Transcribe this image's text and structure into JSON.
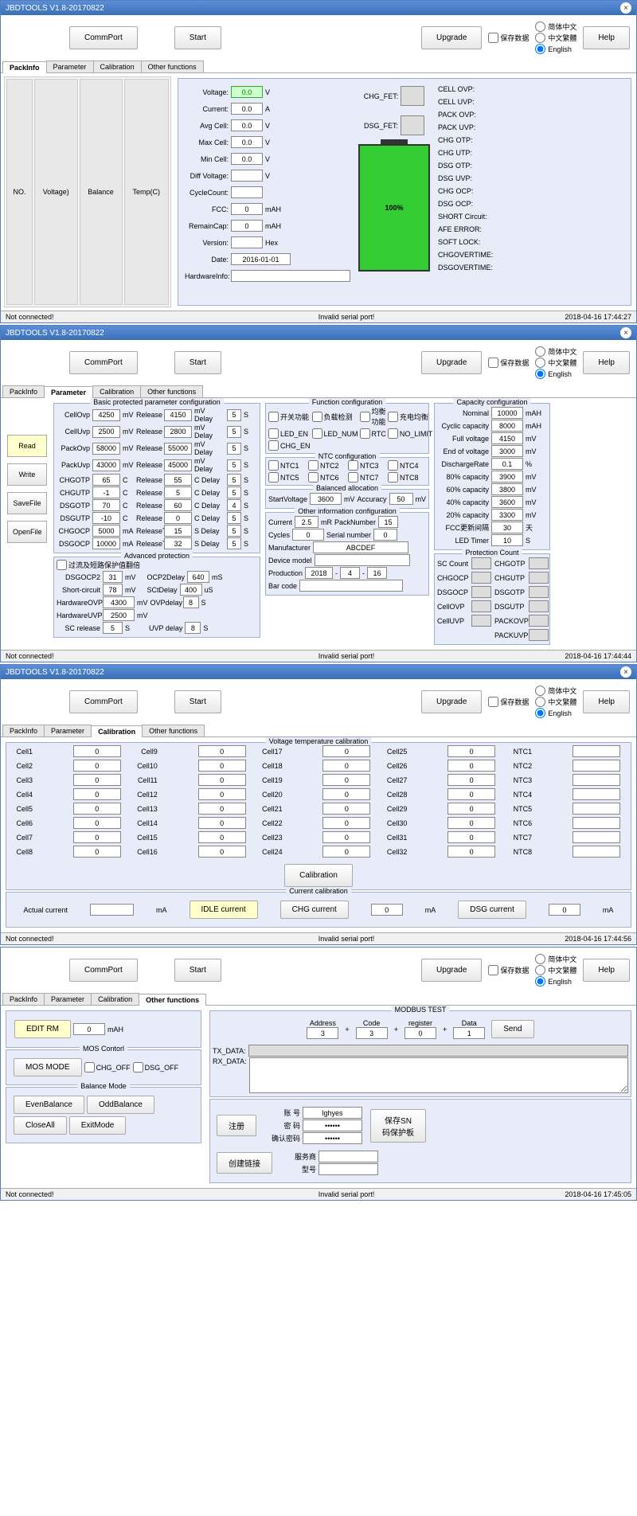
{
  "app_title": "JBDTOOLS V1.8-20170822",
  "buttons": {
    "commport": "CommPort",
    "start": "Start",
    "upgrade": "Upgrade",
    "help": "Help",
    "read": "Read",
    "write": "Write",
    "savefile": "SaveFile",
    "openfile": "OpenFile",
    "calibration": "Calibration",
    "idle_current": "IDLE current",
    "chg_current": "CHG current",
    "dsg_current": "DSG current",
    "edit_rm": "EDIT RM",
    "mos_mode": "MOS MODE",
    "even_balance": "EvenBalance",
    "odd_balance": "OddBalance",
    "close_all": "CloseAll",
    "exit_mode": "ExitMode",
    "send": "Send",
    "register": "注册",
    "create_link": "创建链接",
    "save_sn": "保存SN码保护板"
  },
  "checkboxes": {
    "save_data": "保存数据",
    "lang_cn": "简体中文",
    "lang_tw": "中文繁體",
    "lang_en": "English",
    "chg_off": "CHG_OFF",
    "dsg_off": "DSG_OFF"
  },
  "tabs": {
    "packinfo": "PackInfo",
    "parameter": "Parameter",
    "calibration": "Calibration",
    "other": "Other functions"
  },
  "table_headers": {
    "no": "NO.",
    "voltage": "Voltage)",
    "balance": "Balance",
    "temp": "Temp(C)"
  },
  "packinfo": {
    "labels": {
      "voltage": "Voltage:",
      "current": "Current:",
      "avg_cell": "Avg Cell:",
      "max_cell": "Max Cell:",
      "min_cell": "Min Cell:",
      "diff_voltage": "Diff Voltage:",
      "cycle_count": "CycleCount:",
      "fcc": "FCC:",
      "remain_cap": "RemainCap:",
      "version": "Version:",
      "date": "Date:",
      "hardware_info": "HardwareInfo:",
      "chg_fet": "CHG_FET:",
      "dsg_fet": "DSG_FET:"
    },
    "values": {
      "voltage": "0.0",
      "current": "0.0",
      "avg_cell": "0.0",
      "max_cell": "0.0",
      "min_cell": "0.0",
      "diff_voltage": "",
      "cycle_count": "",
      "fcc": "0",
      "remain_cap": "0",
      "version": "",
      "date": "2016-01-01",
      "hardware_info": ""
    },
    "units": {
      "v": "V",
      "a": "A",
      "mah": "mAH",
      "hex": "Hex"
    },
    "battery_pct": "100%",
    "status_items": [
      "CELL OVP:",
      "CELL UVP:",
      "PACK OVP:",
      "PACK UVP:",
      "CHG OTP:",
      "CHG UTP:",
      "DSG OTP:",
      "DSG UVP:",
      "CHG OCP:",
      "DSG OCP:",
      "SHORT Circuit:",
      "AFE ERROR:",
      "SOFT LOCK:",
      "CHGOVERTIME:",
      "DSGOVERTIME:"
    ]
  },
  "parameter": {
    "sections": {
      "basic": "Basic protected parameter configuration",
      "advanced": "Advanced protection",
      "function": "Function configuration",
      "ntc": "NTC configuration",
      "balanced": "Balanced allocation",
      "other_info": "Other information configuration",
      "capacity": "Capacity configuration",
      "protection_count": "Protection Count"
    },
    "basic_rows": [
      {
        "name": "CellOvp",
        "v1": "4250",
        "u1": "mV",
        "rel": "Release",
        "v2": "4150",
        "u2": "mV Delay",
        "d": "5",
        "du": "S"
      },
      {
        "name": "CellUvp",
        "v1": "2500",
        "u1": "mV",
        "rel": "Release",
        "v2": "2800",
        "u2": "mV Delay",
        "d": "5",
        "du": "S"
      },
      {
        "name": "PackOvp",
        "v1": "58000",
        "u1": "mV",
        "rel": "Release",
        "v2": "55000",
        "u2": "mV Delay",
        "d": "5",
        "du": "S"
      },
      {
        "name": "PackUvp",
        "v1": "43000",
        "u1": "mV",
        "rel": "Release",
        "v2": "45000",
        "u2": "mV Delay",
        "d": "5",
        "du": "S"
      },
      {
        "name": "CHGOTP",
        "v1": "65",
        "u1": "C",
        "rel": "Release",
        "v2": "55",
        "u2": "C   Delay",
        "d": "5",
        "du": "S"
      },
      {
        "name": "CHGUTP",
        "v1": "-1",
        "u1": "C",
        "rel": "Release",
        "v2": "5",
        "u2": "C   Delay",
        "d": "5",
        "du": "S"
      },
      {
        "name": "DSGOTP",
        "v1": "70",
        "u1": "C",
        "rel": "Release",
        "v2": "60",
        "u2": "C   Delay",
        "d": "4",
        "du": "S"
      },
      {
        "name": "DSGUTP",
        "v1": "-10",
        "u1": "C",
        "rel": "Release",
        "v2": "0",
        "u2": "C   Delay",
        "d": "5",
        "du": "S"
      },
      {
        "name": "CHGOCP",
        "v1": "5000",
        "u1": "mA",
        "rel": "ReleaseTi",
        "v2": "15",
        "u2": "S   Delay",
        "d": "5",
        "du": "S"
      },
      {
        "name": "DSGOCP",
        "v1": "10000",
        "u1": "mA",
        "rel": "ReleaseTi",
        "v2": "32",
        "u2": "S   Delay",
        "d": "5",
        "du": "S"
      }
    ],
    "advanced": {
      "overcurrent_cb": "过流及短路保护值翻倍",
      "dsgocp2": "DSGOCP2",
      "dsgocp2_v": "31",
      "dsgocp2_u": "mV",
      "ocp2delay": "OCP2Delay",
      "ocp2delay_v": "640",
      "ocp2delay_u": "mS",
      "short_circuit": "Short-circuit",
      "short_circuit_v": "78",
      "short_circuit_u": "mV",
      "sctdelay": "SCtDelay",
      "sctdelay_v": "400",
      "sctdelay_u": "uS",
      "hardware_ovp": "HardwareOVP",
      "hardware_ovp_v": "4300",
      "hardware_ovp_u": "mV",
      "ovpdelay": "OVPdelay",
      "ovpdelay_v": "8",
      "ovpdelay_u": "S",
      "hardware_uvp": "HardwareUVP",
      "hardware_uvp_v": "2500",
      "hardware_uvp_u": "mV",
      "sc_release": "SC release",
      "sc_release_v": "5",
      "sc_release_u": "S",
      "uvp_delay": "UVP delay",
      "uvp_delay_v": "8",
      "uvp_delay_u": "S"
    },
    "function_cbs": {
      "switch": "开关功能",
      "load_detect": "负载检测",
      "balance_fn": "均衡功能",
      "charge_balance": "充电均衡",
      "led_en": "LED_EN",
      "led_num": "LED_NUM",
      "rtc": "RTC",
      "no_limit": "NO_LIMIT",
      "chg_en": "CHG_EN"
    },
    "ntc_cbs": [
      "NTC1",
      "NTC2",
      "NTC3",
      "NTC4",
      "NTC5",
      "NTC6",
      "NTC7",
      "NTC8"
    ],
    "balanced": {
      "start_voltage": "StartVoltage",
      "start_voltage_v": "3600",
      "sv_u": "mV",
      "accuracy": "Accuracy",
      "accuracy_v": "50",
      "acc_u": "mV"
    },
    "other_info": {
      "current": "Current",
      "current_v": "2.5",
      "current_u": "mR",
      "pack_number": "PackNumber",
      "pack_number_v": "15",
      "cycles": "Cycles",
      "cycles_v": "0",
      "serial_number": "Serial number",
      "serial_number_v": "0",
      "manufacturer": "Manufacturer",
      "manufacturer_v": "ABCDEF",
      "device_model": "Device model",
      "device_model_v": "",
      "production": "Production",
      "prod_y": "2018",
      "prod_m": "4",
      "prod_d": "16",
      "barcode": "Bar code",
      "barcode_v": ""
    },
    "capacity": [
      {
        "name": "Nominal",
        "v": "10000",
        "u": "mAH"
      },
      {
        "name": "Cyclic capacity",
        "v": "8000",
        "u": "mAH"
      },
      {
        "name": "Full voltage",
        "v": "4150",
        "u": "mV"
      },
      {
        "name": "End of voltage",
        "v": "3000",
        "u": "mV"
      },
      {
        "name": "DischargeRate",
        "v": "0.1",
        "u": "%"
      },
      {
        "name": "80% capacity",
        "v": "3900",
        "u": "mV"
      },
      {
        "name": "60% capacity",
        "v": "3800",
        "u": "mV"
      },
      {
        "name": "40% capacity",
        "v": "3600",
        "u": "mV"
      },
      {
        "name": "20% capacity",
        "v": "3300",
        "u": "mV"
      },
      {
        "name": "FCC更新间隔",
        "v": "30",
        "u": "天"
      },
      {
        "name": "LED Timer",
        "v": "10",
        "u": "S"
      }
    ],
    "protection_count": {
      "col1": [
        "SC Count",
        "CHGOCP",
        "DSGOCP",
        "CellOVP",
        "CellUVP"
      ],
      "col2": [
        "CHGOTP",
        "CHGUTP",
        "DSGOTP",
        "DSGUTP",
        "PACKOVP",
        "PACKUVP"
      ]
    }
  },
  "calibration": {
    "title": "Voltage temperature calibration",
    "current_cal_title": "Current calibration",
    "cells": 32,
    "ntcs": 8,
    "cell_value": "0",
    "actual_current": "Actual current",
    "actual_current_u": "mA",
    "chg_val": "0",
    "dsg_val": "0",
    "ma": "mA"
  },
  "other": {
    "mah": "mAH",
    "mah_v": "0",
    "mos_control": "MOS Contorl",
    "balance_mode": "Balance Mode",
    "modbus_test": "MODBUS TEST",
    "address": "Address",
    "address_v": "3",
    "code": "Code",
    "code_v": "3",
    "register_lbl": "register",
    "register_v": "0",
    "data": "Data",
    "data_v": "1",
    "tx_data": "TX_DATA:",
    "rx_data": "RX_DATA:",
    "account": "账    号",
    "account_v": "lghyes",
    "password": "密    码",
    "password_v": "******",
    "confirm_pw": "确认密码",
    "confirm_pw_v": "******",
    "provider": "服务商",
    "model": "型号"
  },
  "status": {
    "not_connected": "Not connected!",
    "invalid_port": "Invalid serial port!",
    "ts1": "2018-04-16 17:44:27",
    "ts2": "2018-04-16 17:44:44",
    "ts3": "2018-04-16 17:44:56",
    "ts4": "2018-04-16 17:45:05"
  }
}
